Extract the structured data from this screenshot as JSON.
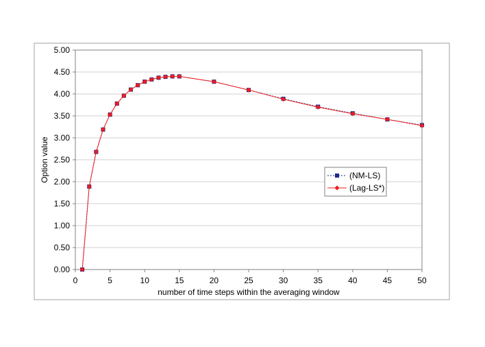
{
  "chart_data": {
    "type": "line",
    "title": "",
    "xlabel": "number of time steps within the averaging window",
    "ylabel": "Option value",
    "xlim": [
      0,
      50
    ],
    "ylim": [
      0,
      5
    ],
    "x_ticks": [
      "0",
      "5",
      "10",
      "15",
      "20",
      "25",
      "30",
      "35",
      "40",
      "45",
      "50"
    ],
    "y_ticks": [
      "0.00",
      "0.50",
      "1.00",
      "1.50",
      "2.00",
      "2.50",
      "3.00",
      "3.50",
      "4.00",
      "4.50",
      "5.00"
    ],
    "grid": "horizontal",
    "legend_position": "right",
    "x": [
      1,
      2,
      3,
      4,
      5,
      6,
      7,
      8,
      9,
      10,
      11,
      12,
      13,
      14,
      15,
      20,
      25,
      30,
      35,
      40,
      45,
      50
    ],
    "series": [
      {
        "name": "(NM-LS)",
        "color": "#1f2a8a",
        "line_style": "dotted",
        "marker": "square",
        "values": [
          0.0,
          1.89,
          2.68,
          3.19,
          3.53,
          3.78,
          3.96,
          4.1,
          4.2,
          4.28,
          4.33,
          4.37,
          4.39,
          4.4,
          4.4,
          4.28,
          4.09,
          3.89,
          3.71,
          3.56,
          3.42,
          3.29
        ]
      },
      {
        "name": "(Lag-LS*)",
        "color": "#ee1c1c",
        "line_style": "solid",
        "marker": "diamond",
        "values": [
          0.0,
          1.89,
          2.68,
          3.19,
          3.53,
          3.78,
          3.96,
          4.1,
          4.2,
          4.28,
          4.33,
          4.37,
          4.39,
          4.4,
          4.4,
          4.28,
          4.09,
          3.88,
          3.7,
          3.55,
          3.42,
          3.28
        ]
      }
    ]
  }
}
